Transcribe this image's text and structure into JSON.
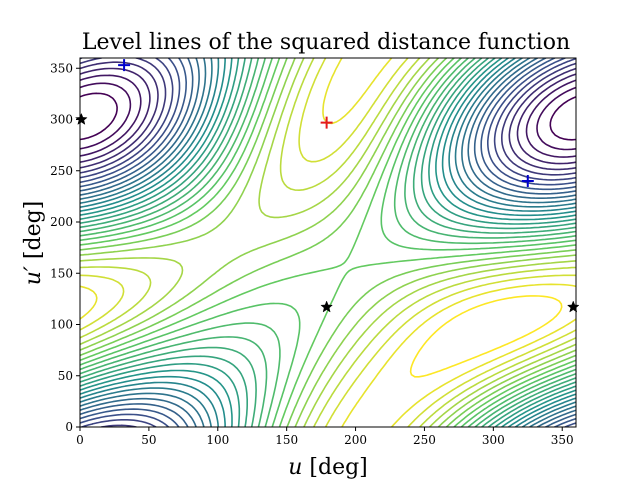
{
  "chart_data": {
    "type": "contour",
    "title": "Level lines of the squared distance function",
    "xlabel_symbol": "u",
    "xlabel_unit": "[deg]",
    "ylabel_symbol": "u′",
    "ylabel_unit": "[deg]",
    "xlim": [
      0,
      360
    ],
    "ylim": [
      0,
      360
    ],
    "xticks": [
      0,
      50,
      100,
      150,
      200,
      250,
      300,
      350
    ],
    "yticks": [
      0,
      50,
      100,
      150,
      200,
      250,
      300,
      350
    ],
    "colormap": [
      "#440154",
      "#3b528b",
      "#21918c",
      "#5ec962",
      "#fde725"
    ],
    "contour_levels": 30,
    "markers": [
      {
        "name": "maximum",
        "shape": "plus",
        "color": "#e41a1c",
        "x": 179,
        "y": 297
      },
      {
        "name": "minimum",
        "shape": "plus",
        "color": "#0000cc",
        "x": 32,
        "y": 353
      },
      {
        "name": "minimum",
        "shape": "plus",
        "color": "#0000cc",
        "x": 325,
        "y": 240
      },
      {
        "name": "saddle",
        "shape": "star",
        "color": "#000000",
        "x": 1,
        "y": 300
      },
      {
        "name": "saddle",
        "shape": "star",
        "color": "#000000",
        "x": 179,
        "y": 117
      },
      {
        "name": "saddle",
        "shape": "star",
        "color": "#000000",
        "x": 358,
        "y": 117
      }
    ]
  }
}
